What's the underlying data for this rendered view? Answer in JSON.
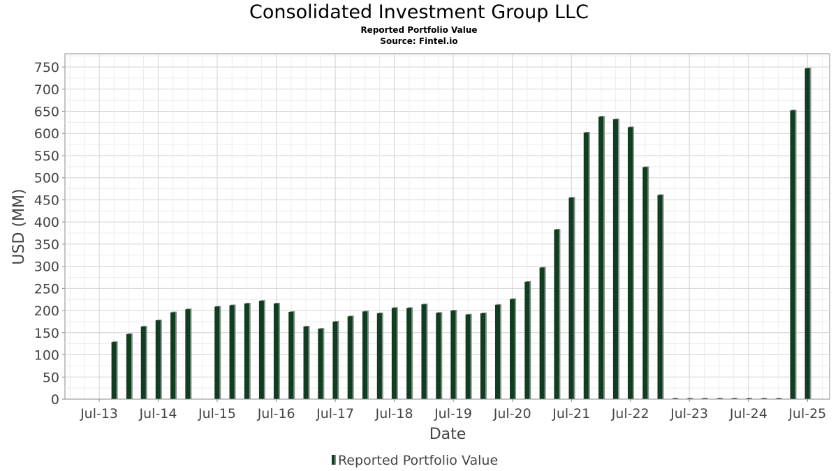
{
  "chart_data": {
    "type": "bar",
    "title": "Consolidated Investment Group LLC",
    "subtitle": "Reported Portfolio Value",
    "source": "Source: Fintel.io",
    "xlabel": "Date",
    "ylabel": "USD (MM)",
    "ylim": [
      0,
      780
    ],
    "yticks": [
      0,
      50,
      100,
      150,
      200,
      250,
      300,
      350,
      400,
      450,
      500,
      550,
      600,
      650,
      700,
      750
    ],
    "xticks": [
      "Jul-13",
      "Jul-14",
      "Jul-15",
      "Jul-16",
      "Jul-17",
      "Jul-18",
      "Jul-19",
      "Jul-20",
      "Jul-21",
      "Jul-22",
      "Jul-23",
      "Jul-24",
      "Jul-25"
    ],
    "grid": true,
    "legend_position": "bottom",
    "series": [
      {
        "name": "Reported Portfolio Value",
        "color": "#0f3d1f",
        "x": [
          "2013-09-30",
          "2013-12-31",
          "2014-03-31",
          "2014-06-30",
          "2014-09-30",
          "2014-12-31",
          "2015-06-30",
          "2015-09-30",
          "2015-12-31",
          "2016-03-31",
          "2016-06-30",
          "2016-09-30",
          "2016-12-31",
          "2017-03-31",
          "2017-06-30",
          "2017-09-30",
          "2017-12-31",
          "2018-03-31",
          "2018-06-30",
          "2018-09-30",
          "2018-12-31",
          "2019-03-31",
          "2019-06-30",
          "2019-09-30",
          "2019-12-31",
          "2020-03-31",
          "2020-06-30",
          "2020-09-30",
          "2020-12-31",
          "2021-03-31",
          "2021-06-30",
          "2021-09-30",
          "2021-12-31",
          "2022-03-31",
          "2022-06-30",
          "2022-09-30",
          "2022-12-31",
          "2023-03-31",
          "2023-06-30",
          "2023-09-30",
          "2023-12-31",
          "2024-03-31",
          "2024-06-30",
          "2024-09-30",
          "2024-12-31",
          "2025-03-31",
          "2025-06-30"
        ],
        "values": [
          129,
          147,
          164,
          178,
          196,
          203,
          209,
          212,
          216,
          222,
          216,
          197,
          164,
          159,
          175,
          187,
          198,
          194,
          206,
          206,
          214,
          195,
          200,
          191,
          194,
          213,
          226,
          265,
          297,
          383,
          455,
          602,
          638,
          632,
          614,
          524,
          461,
          1,
          1,
          1,
          1,
          1,
          1,
          1,
          1,
          652,
          747
        ]
      }
    ]
  }
}
